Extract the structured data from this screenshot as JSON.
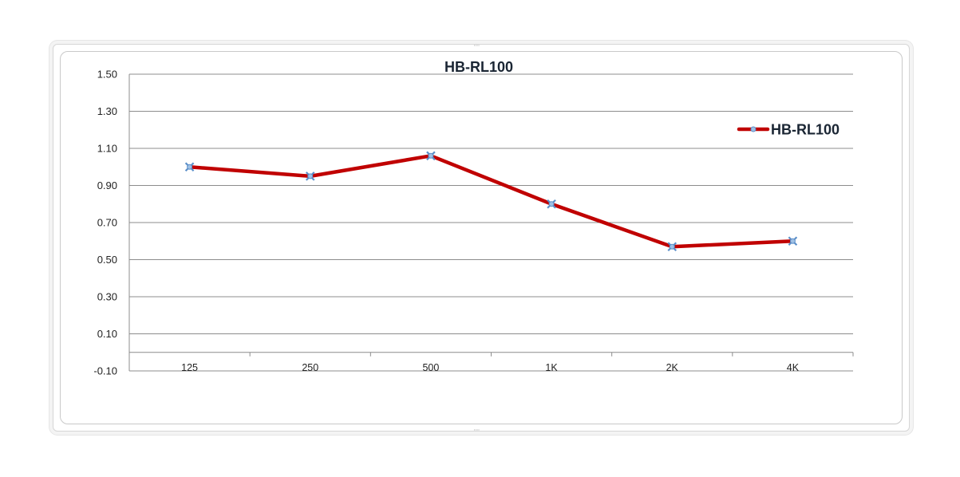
{
  "chart_data": {
    "type": "line",
    "title": "HB-RL100",
    "categories": [
      "125",
      "250",
      "500",
      "1K",
      "2K",
      "4K"
    ],
    "series": [
      {
        "name": "HB-RL100",
        "values": [
          1.0,
          0.95,
          1.06,
          0.8,
          0.57,
          0.6
        ],
        "color": "#c00000",
        "marker_color": "#5b8fc9"
      }
    ],
    "y_ticks": [
      "1.50",
      "1.30",
      "1.10",
      "0.90",
      "0.70",
      "0.50",
      "0.30",
      "0.10",
      "-0.10"
    ],
    "ylim": [
      -0.1,
      1.5
    ],
    "x_axis_at": 0,
    "xlabel": "",
    "ylabel": "",
    "grid": true,
    "legend_position": "top-right"
  }
}
